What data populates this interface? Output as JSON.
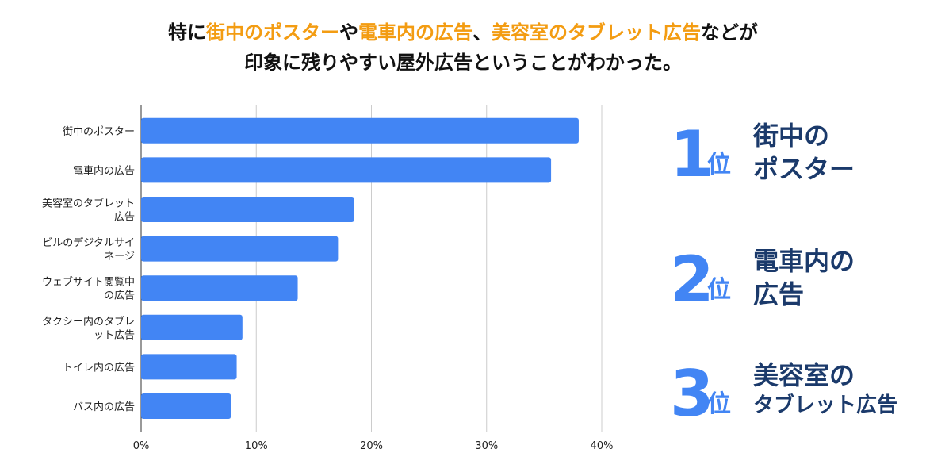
{
  "headline": {
    "line1": [
      {
        "text": "特に",
        "hl": false
      },
      {
        "text": "街中のポスター",
        "hl": true
      },
      {
        "text": "や",
        "hl": false
      },
      {
        "text": "電車内の広告",
        "hl": true
      },
      {
        "text": "、",
        "hl": false
      },
      {
        "text": "美容室のタブレット広告",
        "hl": true
      },
      {
        "text": "などが",
        "hl": false
      }
    ],
    "line2": "印象に残りやすい屋外広告ということがわかった。"
  },
  "colors": {
    "bar": "#4285f4",
    "highlight": "#f39c12",
    "rank_number": "#4285f4",
    "rank_text": "#1b3a6b",
    "grid": "#cccccc"
  },
  "chart_data": {
    "type": "bar",
    "orientation": "horizontal",
    "categories": [
      [
        "街中のポスター"
      ],
      [
        "電車内の広告"
      ],
      [
        "美容室のタブレット",
        "広告"
      ],
      [
        "ビルのデジタルサイ",
        "ネージ"
      ],
      [
        "ウェブサイト閲覧中",
        "の広告"
      ],
      [
        "タクシー内のタブレ",
        "ット広告"
      ],
      [
        "トイレ内の広告"
      ],
      [
        "バス内の広告"
      ]
    ],
    "values": [
      38.0,
      35.6,
      18.5,
      17.1,
      13.6,
      8.8,
      8.3,
      7.8
    ],
    "xlim": [
      0,
      40
    ],
    "xticks": [
      0,
      10,
      20,
      30,
      40
    ],
    "xtick_labels": [
      "0%",
      "10%",
      "20%",
      "30%",
      "40%"
    ],
    "grid": true
  },
  "rankings": [
    {
      "number": "1",
      "suffix": "位",
      "lines": [
        "街中の",
        "ポスター"
      ]
    },
    {
      "number": "2",
      "suffix": "位",
      "lines": [
        "電車内の",
        "広告"
      ]
    },
    {
      "number": "3",
      "suffix": "位",
      "lines": [
        "美容室の",
        "タブレット広告"
      ]
    }
  ]
}
